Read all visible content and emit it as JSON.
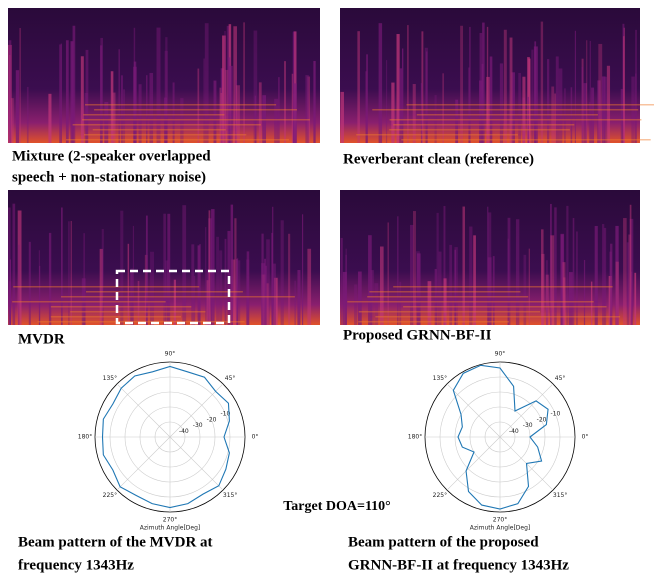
{
  "panels": [
    {
      "caption": [
        "Mixture (2-speaker overlapped",
        "speech + non-stationary noise)"
      ]
    },
    {
      "caption": [
        "Reverberant clean (reference)"
      ]
    },
    {
      "caption": [
        "MVDR"
      ]
    },
    {
      "caption": [
        "Proposed GRNN-BF-II"
      ]
    }
  ],
  "annotation": "Target DOA=110°",
  "chart_data": [
    {
      "type": "polar",
      "caption": [
        "Beam pattern of the MVDR at",
        "frequency 1343Hz"
      ],
      "xlabel": "Azimuth Angle[Deg]",
      "color": "#1f77b4",
      "theta": [
        0,
        15,
        30,
        45,
        60,
        75,
        90,
        105,
        120,
        135,
        150,
        165,
        180,
        195,
        210,
        225,
        240,
        255,
        270,
        285,
        300,
        315,
        330,
        345
      ],
      "values": [
        -14,
        -9,
        -5,
        -7,
        -4,
        -5,
        -3,
        -5,
        -3,
        -4,
        -6,
        -4,
        -5,
        -4,
        -6,
        -3,
        -5,
        -4,
        -3,
        -4,
        -6,
        -4,
        -7,
        -9
      ],
      "rlim": [
        -50,
        0
      ],
      "rticks": [
        -40,
        -30,
        -20,
        -10
      ],
      "thetaticks": [
        {
          "value": 0,
          "label": "0°"
        },
        {
          "value": 45,
          "label": "45°"
        },
        {
          "value": 90,
          "label": "90°"
        },
        {
          "value": 135,
          "label": "135°"
        },
        {
          "value": 180,
          "label": "180°"
        },
        {
          "value": 225,
          "label": "225°"
        },
        {
          "value": 270,
          "label": "270°"
        },
        {
          "value": 315,
          "label": "315°"
        }
      ]
    },
    {
      "type": "polar",
      "caption": [
        "Beam pattern of the proposed",
        "GRNN-BF-II at frequency 1343Hz"
      ],
      "xlabel": "Azimuth Angle[Deg]",
      "color": "#1f77b4",
      "theta": [
        0,
        15,
        30,
        45,
        60,
        75,
        90,
        105,
        120,
        135,
        150,
        165,
        180,
        195,
        210,
        225,
        240,
        255,
        270,
        285,
        300,
        315,
        330,
        345
      ],
      "values": [
        -30,
        -18,
        -13,
        -16,
        -30,
        -15,
        -4,
        -0.5,
        -1,
        -6,
        -20,
        -24,
        -22,
        -24,
        -30,
        -18,
        -8,
        -3,
        -2,
        -4,
        -12,
        -25,
        -18,
        -24
      ],
      "rlim": [
        -50,
        0
      ],
      "rticks": [
        -40,
        -30,
        -20,
        -10
      ],
      "thetaticks": [
        {
          "value": 0,
          "label": "0°"
        },
        {
          "value": 45,
          "label": "45°"
        },
        {
          "value": 90,
          "label": "90°"
        },
        {
          "value": 135,
          "label": "135°"
        },
        {
          "value": 180,
          "label": "180°"
        },
        {
          "value": 225,
          "label": "225°"
        },
        {
          "value": 270,
          "label": "270°"
        },
        {
          "value": 315,
          "label": "315°"
        }
      ]
    }
  ]
}
